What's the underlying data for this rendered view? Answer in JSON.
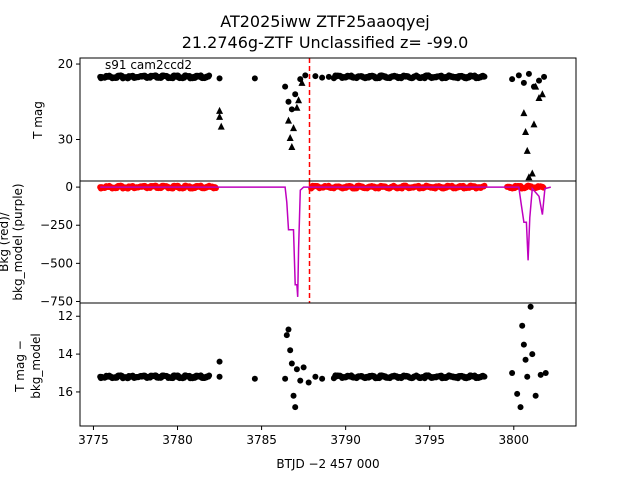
{
  "chart_data": [
    {
      "type": "scatter",
      "panel": "top",
      "title_line1": "AT2025iww  ZTF25aaoqyej",
      "title_line2": "21.2746g-ZTF Unclassified z= -99.0",
      "annotation": "s91 cam2ccd2",
      "ylabel": "T mag",
      "ylim": [
        35.5,
        19.2
      ],
      "yticks": [
        20,
        30
      ],
      "inverted_y": true,
      "vline_x": 3787.85,
      "vline_color": "#ff0000",
      "series": [
        {
          "marker": "circle",
          "color": "#000000",
          "ranges": [
            [
              3775.4,
              3781.9,
              21.7
            ],
            [
              3789.3,
              3798.3,
              21.7
            ]
          ],
          "points": [
            [
              3782.5,
              21.9
            ],
            [
              3784.6,
              21.9
            ],
            [
              3786.4,
              23
            ],
            [
              3786.6,
              25
            ],
            [
              3786.8,
              26
            ],
            [
              3787.0,
              24
            ],
            [
              3787.3,
              22
            ],
            [
              3787.6,
              21.5
            ],
            [
              3788.2,
              21.6
            ],
            [
              3788.6,
              21.8
            ],
            [
              3789.0,
              21.7
            ],
            [
              3799.9,
              22
            ],
            [
              3800.3,
              21.5
            ],
            [
              3800.6,
              22.5
            ],
            [
              3800.9,
              21.3
            ],
            [
              3801.2,
              23
            ],
            [
              3801.5,
              22.2
            ],
            [
              3801.8,
              21.7
            ]
          ]
        },
        {
          "marker": "triangle",
          "color": "#000000",
          "points": [
            [
              3782.5,
              26.2
            ],
            [
              3782.5,
              27.0
            ],
            [
              3782.6,
              28.3
            ],
            [
              3786.6,
              27.5
            ],
            [
              3786.7,
              29.8
            ],
            [
              3786.8,
              31.0
            ],
            [
              3786.9,
              28.5
            ],
            [
              3787.1,
              25.8
            ],
            [
              3787.2,
              24.8
            ],
            [
              3787.4,
              22.5
            ],
            [
              3800.6,
              26.5
            ],
            [
              3800.7,
              29
            ],
            [
              3800.8,
              31.5
            ],
            [
              3800.9,
              35
            ],
            [
              3801.1,
              34.5
            ],
            [
              3801.2,
              28
            ],
            [
              3801.3,
              23
            ],
            [
              3801.5,
              24.5
            ],
            [
              3801.7,
              24
            ]
          ]
        }
      ]
    },
    {
      "type": "scatter",
      "panel": "middle",
      "ylabel_line1": "Bkg (red)/",
      "ylabel_line2": "bkg_model (purple)",
      "ylim": [
        -760,
        40
      ],
      "yticks": [
        0,
        -250,
        -500,
        -750
      ],
      "vline_x": 3787.85,
      "series": [
        {
          "name": "bkg",
          "color": "#ff0000",
          "marker": "circle",
          "ranges": [
            [
              3775.4,
              3782.3,
              0
            ],
            [
              3787.95,
              3798.3,
              0
            ],
            [
              3799.6,
              3801.8,
              0
            ]
          ]
        },
        {
          "name": "bkg_model",
          "color": "#bf00bf",
          "type": "line",
          "points": [
            [
              3775.4,
              0
            ],
            [
              3786.4,
              0
            ],
            [
              3786.5,
              -100
            ],
            [
              3786.6,
              -280
            ],
            [
              3786.9,
              -280
            ],
            [
              3787.0,
              -640
            ],
            [
              3787.1,
              -640
            ],
            [
              3787.15,
              -720
            ],
            [
              3787.2,
              -400
            ],
            [
              3787.3,
              -20
            ],
            [
              3787.5,
              0
            ],
            [
              3800.3,
              0
            ],
            [
              3800.45,
              -120
            ],
            [
              3800.6,
              -230
            ],
            [
              3800.75,
              -230
            ],
            [
              3800.85,
              -480
            ],
            [
              3800.95,
              -200
            ],
            [
              3801.1,
              -10
            ],
            [
              3801.5,
              -60
            ],
            [
              3801.7,
              -180
            ],
            [
              3801.85,
              -10
            ],
            [
              3802.2,
              0
            ]
          ]
        }
      ]
    },
    {
      "type": "scatter",
      "panel": "bottom",
      "ylabel_line1": "T mag −",
      "ylabel_line2": "bkg_model",
      "xlabel": "BTJD −2 457 000",
      "ylim": [
        17.8,
        11.3
      ],
      "yticks": [
        12,
        14,
        16
      ],
      "xlim": [
        3774.2,
        3803.7
      ],
      "xticks": [
        3775,
        3780,
        3785,
        3790,
        3795,
        3800
      ],
      "series": [
        {
          "marker": "circle",
          "color": "#000000",
          "ranges": [
            [
              3775.4,
              3781.9,
              15.2
            ],
            [
              3789.3,
              3798.3,
              15.2
            ]
          ],
          "points": [
            [
              3782.5,
              14.4
            ],
            [
              3782.5,
              15.2
            ],
            [
              3784.6,
              15.3
            ],
            [
              3786.4,
              15.3
            ],
            [
              3786.5,
              13.0
            ],
            [
              3786.6,
              12.7
            ],
            [
              3786.7,
              13.8
            ],
            [
              3786.8,
              14.5
            ],
            [
              3786.9,
              16.2
            ],
            [
              3787.0,
              16.8
            ],
            [
              3787.1,
              14.8
            ],
            [
              3787.3,
              15.4
            ],
            [
              3787.5,
              14.7
            ],
            [
              3787.8,
              15.5
            ],
            [
              3788.2,
              15.2
            ],
            [
              3788.6,
              15.3
            ],
            [
              3799.9,
              15.0
            ],
            [
              3800.2,
              16.1
            ],
            [
              3800.4,
              16.8
            ],
            [
              3800.5,
              12.5
            ],
            [
              3800.6,
              13.5
            ],
            [
              3800.7,
              14.3
            ],
            [
              3800.8,
              15.2
            ],
            [
              3801.0,
              11.5
            ],
            [
              3801.1,
              14.0
            ],
            [
              3801.3,
              16.2
            ],
            [
              3801.6,
              15.1
            ],
            [
              3801.9,
              15.0
            ]
          ]
        }
      ]
    }
  ],
  "colors": {
    "red": "#ff0000",
    "purple": "#bf00bf",
    "black": "#000000"
  }
}
